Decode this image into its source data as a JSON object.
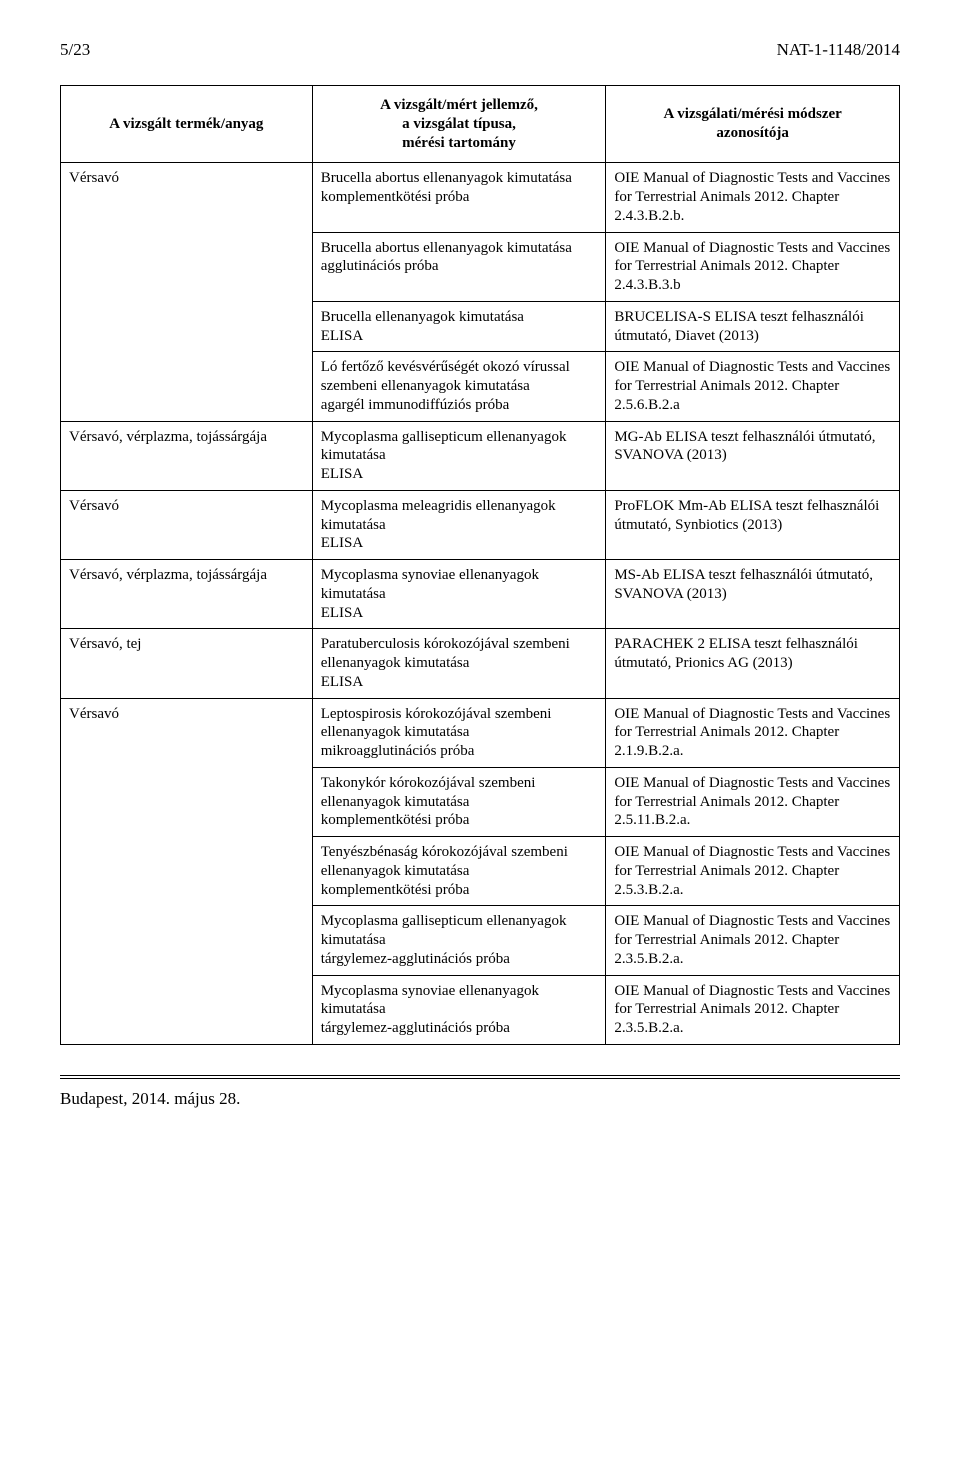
{
  "header": {
    "page_marker": "5/23",
    "doc_id": "NAT-1-1148/2014"
  },
  "table": {
    "headers": {
      "c1": "A vizsgált termék/anyag",
      "c2_l1": "A vizsgált/mért jellemző,",
      "c2_l2": "a vizsgálat típusa,",
      "c2_l3": "mérési tartomány",
      "c3_l1": "A vizsgálati/mérési módszer",
      "c3_l2": "azonosítója"
    },
    "rows": [
      {
        "c1": "Vérsavó",
        "c2": "Brucella abortus ellenanyagok kimutatása\nkomplementkötési próba",
        "c3": "OIE Manual of Diagnostic Tests and Vaccines for Terrestrial Animals 2012. Chapter 2.4.3.B.2.b."
      },
      {
        "c1": "",
        "c2": "Brucella abortus ellenanyagok kimutatása\nagglutinációs próba",
        "c3": "OIE Manual of Diagnostic Tests and Vaccines for Terrestrial Animals 2012. Chapter 2.4.3.B.3.b"
      },
      {
        "c1": "",
        "c2": "Brucella ellenanyagok kimutatása\nELISA",
        "c3": "BRUCELISA-S ELISA teszt felhasználói útmutató, Diavet (2013)"
      },
      {
        "c1": "",
        "c2": "Ló fertőző kevésvérűségét okozó vírussal szembeni ellenanyagok kimutatása\nagargél immunodiffúziós próba",
        "c3": "OIE Manual of Diagnostic Tests and Vaccines for Terrestrial Animals 2012. Chapter 2.5.6.B.2.a"
      },
      {
        "c1": "Vérsavó, vérplazma, tojássárgája",
        "c2": "Mycoplasma gallisepticum ellenanyagok kimutatása\nELISA",
        "c3": "MG-Ab ELISA teszt felhasználói útmutató, SVANOVA (2013)"
      },
      {
        "c1": "Vérsavó",
        "c2": "Mycoplasma meleagridis ellenanyagok kimutatása\nELISA",
        "c3": "ProFLOK Mm-Ab ELISA teszt felhasználói útmutató, Synbiotics (2013)"
      },
      {
        "c1": "Vérsavó, vérplazma, tojássárgája",
        "c2": "Mycoplasma synoviae ellenanyagok kimutatása\nELISA",
        "c3": "MS-Ab ELISA teszt felhasználói útmutató, SVANOVA (2013)"
      },
      {
        "c1": "Vérsavó, tej",
        "c2": "Paratuberculosis kórokozójával szembeni ellenanyagok kimutatása\nELISA",
        "c3": "PARACHEK 2 ELISA teszt felhasználói útmutató, Prionics AG (2013)"
      },
      {
        "c1": "Vérsavó",
        "c2": "Leptospirosis kórokozójával szembeni ellenanyagok kimutatása\nmikroagglutinációs próba",
        "c3": "OIE Manual of Diagnostic Tests and Vaccines for Terrestrial Animals 2012. Chapter 2.1.9.B.2.a."
      },
      {
        "c1": "",
        "c2": "Takonykór kórokozójával szembeni ellenanyagok kimutatása\nkomplementkötési próba",
        "c3": "OIE Manual of Diagnostic Tests and Vaccines for Terrestrial Animals 2012. Chapter 2.5.11.B.2.a."
      },
      {
        "c1": "",
        "c2": "Tenyészbénaság kórokozójával szembeni ellenanyagok kimutatása\nkomplementkötési próba",
        "c3": "OIE Manual of Diagnostic Tests and Vaccines for Terrestrial Animals 2012. Chapter 2.5.3.B.2.a."
      },
      {
        "c1": "",
        "c2": "Mycoplasma gallisepticum ellenanyagok kimutatása\ntárgylemez-agglutinációs próba",
        "c3": "OIE Manual of Diagnostic Tests and Vaccines for Terrestrial Animals 2012. Chapter 2.3.5.B.2.a."
      },
      {
        "c1": "",
        "c2": "Mycoplasma synoviae ellenanyagok kimutatása\ntárgylemez-agglutinációs próba",
        "c3": "OIE Manual of Diagnostic Tests and Vaccines for Terrestrial Animals 2012. Chapter 2.3.5.B.2.a."
      }
    ]
  },
  "footer": {
    "text": "Budapest, 2014. május 28."
  }
}
